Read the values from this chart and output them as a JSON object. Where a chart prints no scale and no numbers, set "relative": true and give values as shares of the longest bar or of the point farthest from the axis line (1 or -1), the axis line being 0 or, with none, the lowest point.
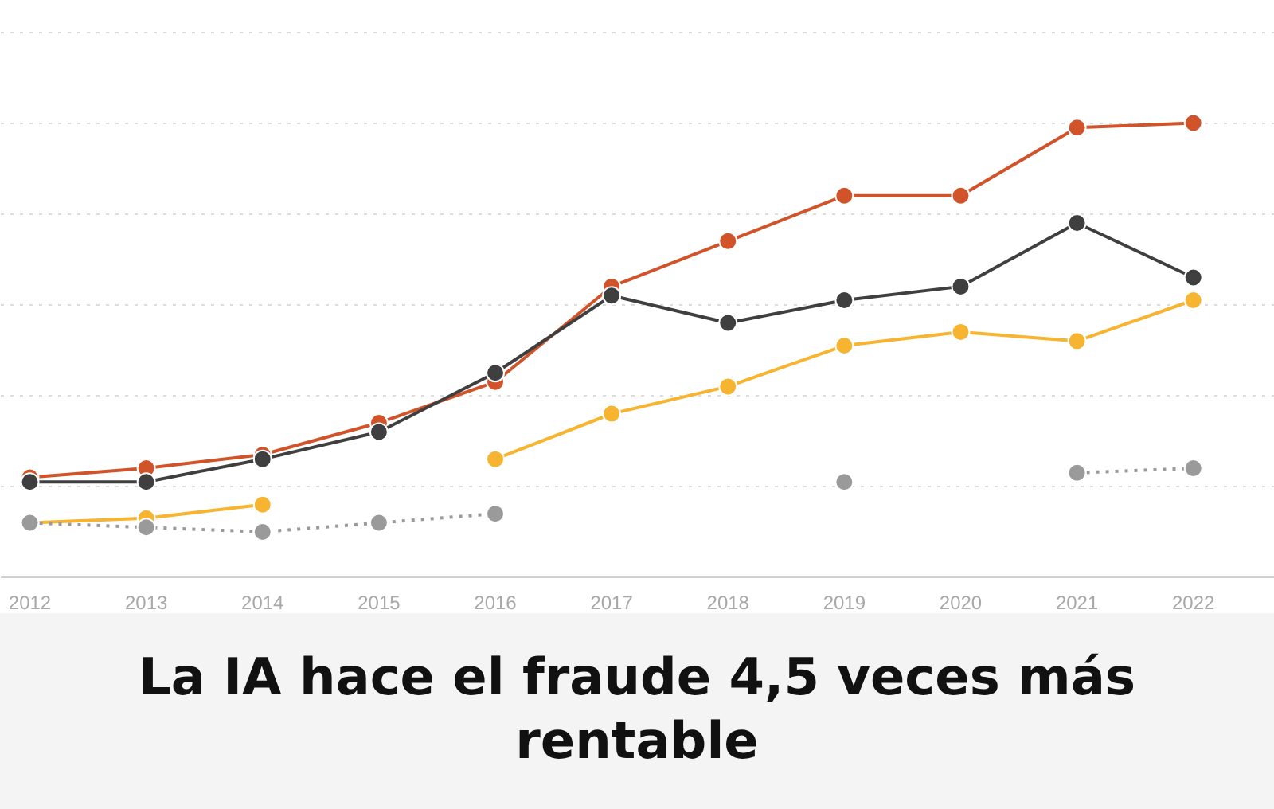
{
  "chart_data": {
    "type": "line",
    "title": "La IA hace el fraude 4,5 veces más rentable",
    "relative": true,
    "categories": [
      "2012",
      "2013",
      "2014",
      "2015",
      "2016",
      "2017",
      "2018",
      "2019",
      "2020",
      "2021",
      "2022"
    ],
    "series": [
      {
        "color": "#d1532a",
        "values": [
          0.22,
          0.24,
          0.27,
          0.34,
          0.43,
          0.64,
          0.74,
          0.84,
          0.84,
          0.99,
          1
        ]
      },
      {
        "color": "#3f3f3f",
        "values": [
          0.21,
          0.21,
          0.26,
          0.32,
          0.45,
          0.62,
          0.56,
          0.61,
          0.64,
          0.78,
          0.66
        ]
      },
      {
        "color": "#f6b431",
        "values": [
          0.12,
          0.13,
          0.16,
          null,
          0.26,
          0.36,
          0.42,
          0.51,
          0.54,
          0.52,
          0.61
        ]
      },
      {
        "color": "#9a9a9a",
        "line_style": "dotted",
        "values": [
          0.12,
          0.11,
          0.1,
          0.12,
          0.14,
          null,
          null,
          0.21,
          null,
          0.23,
          0.24
        ]
      }
    ],
    "grid": "y",
    "marker": "circle",
    "line_style": "solid"
  }
}
